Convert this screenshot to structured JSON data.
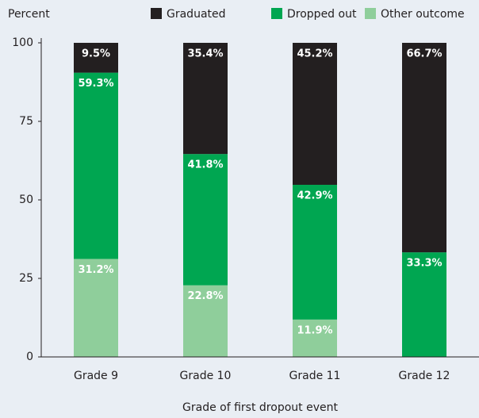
{
  "chart_data": {
    "type": "stacked_bar",
    "ylabel": "Percent",
    "xlabel": "Grade of first dropout event",
    "categories": [
      "Grade 9",
      "Grade 10",
      "Grade 11",
      "Grade 12"
    ],
    "series": [
      {
        "name": "Graduated",
        "color": "#231f20",
        "values": [
          9.5,
          35.4,
          45.2,
          66.7
        ],
        "value_labels": [
          "9.5%",
          "35.4%",
          "45.2%",
          "66.7%"
        ]
      },
      {
        "name": "Dropped out",
        "color": "#00a651",
        "values": [
          59.3,
          41.8,
          42.9,
          33.3
        ],
        "value_labels": [
          "59.3%",
          "41.8%",
          "42.9%",
          "33.3%"
        ]
      },
      {
        "name": "Other outcome",
        "color": "#8fce9b",
        "values": [
          31.2,
          22.8,
          11.9,
          0
        ],
        "value_labels": [
          "31.2%",
          "22.8%",
          "11.9%",
          null
        ]
      }
    ],
    "ylim": [
      0,
      100
    ],
    "yticks": [
      0,
      25,
      50,
      75,
      100
    ],
    "grid": false,
    "legend": "top"
  }
}
